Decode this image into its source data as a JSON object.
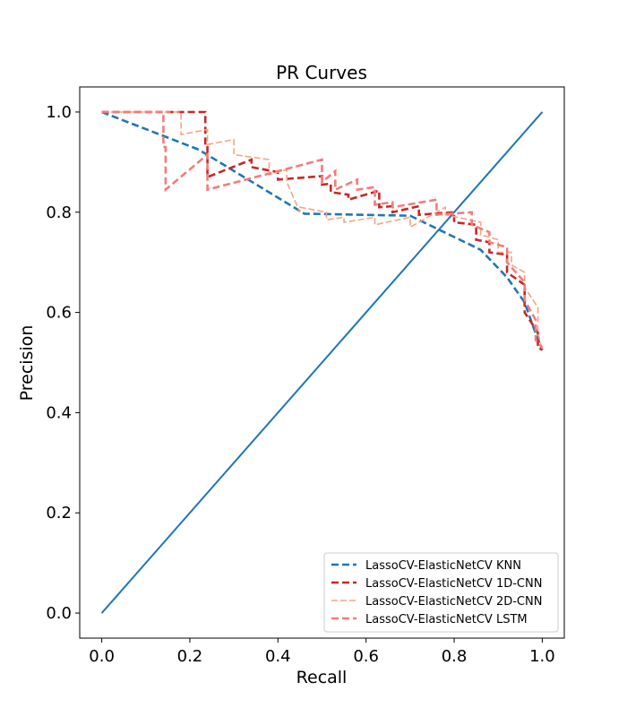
{
  "chart_data": {
    "type": "line",
    "title": "PR Curves",
    "xlabel": "Recall",
    "ylabel": "Precision",
    "xlim": [
      -0.05,
      1.05
    ],
    "ylim": [
      -0.05,
      1.05
    ],
    "xticks": [
      0.0,
      0.2,
      0.4,
      0.6,
      0.8,
      1.0
    ],
    "yticks": [
      0.0,
      0.2,
      0.4,
      0.6,
      0.8,
      1.0
    ],
    "xtick_labels": [
      "0.0",
      "0.2",
      "0.4",
      "0.6",
      "0.8",
      "1.0"
    ],
    "ytick_labels": [
      "0.0",
      "0.2",
      "0.4",
      "0.6",
      "0.8",
      "1.0"
    ],
    "grid": false,
    "legend_position": "lower-right",
    "diagonal": {
      "x": [
        0,
        1
      ],
      "y": [
        0,
        1
      ],
      "color": "#1f77b4"
    },
    "series": [
      {
        "name": "LassoCV-ElasticNetCV KNN",
        "color": "#1f77b4",
        "dash": "dashed",
        "x": [
          0.0,
          0.22,
          0.46,
          0.7,
          0.86,
          0.92,
          0.96,
          0.98,
          1.0
        ],
        "y": [
          1.0,
          0.925,
          0.797,
          0.793,
          0.725,
          0.67,
          0.62,
          0.57,
          0.525
        ]
      },
      {
        "name": "LassoCV-ElasticNetCV 1D-CNN",
        "color": "#c62828",
        "dash": "dashed",
        "x": [
          0.0,
          0.235,
          0.235,
          0.24,
          0.24,
          0.34,
          0.34,
          0.4,
          0.4,
          0.5,
          0.5,
          0.52,
          0.52,
          0.56,
          0.56,
          0.63,
          0.63,
          0.66,
          0.66,
          0.72,
          0.72,
          0.8,
          0.8,
          0.85,
          0.85,
          0.88,
          0.88,
          0.92,
          0.92,
          0.96,
          0.96,
          0.99,
          0.99,
          1.0
        ],
        "y": [
          1.0,
          1.0,
          0.93,
          0.93,
          0.87,
          0.905,
          0.89,
          0.88,
          0.865,
          0.872,
          0.855,
          0.857,
          0.84,
          0.835,
          0.825,
          0.843,
          0.81,
          0.812,
          0.8,
          0.812,
          0.795,
          0.8,
          0.78,
          0.775,
          0.745,
          0.74,
          0.72,
          0.715,
          0.68,
          0.655,
          0.6,
          0.56,
          0.53,
          0.525
        ]
      },
      {
        "name": "LassoCV-ElasticNetCV 2D-CNN",
        "color": "#f4a582",
        "dash": "dashed",
        "x": [
          0.0,
          0.18,
          0.18,
          0.24,
          0.24,
          0.3,
          0.3,
          0.38,
          0.38,
          0.42,
          0.42,
          0.45,
          0.45,
          0.51,
          0.51,
          0.55,
          0.55,
          0.62,
          0.62,
          0.7,
          0.7,
          0.78,
          0.78,
          0.86,
          0.86,
          0.9,
          0.9,
          0.93,
          0.93,
          0.96,
          0.96,
          0.99,
          0.99,
          1.0
        ],
        "y": [
          1.0,
          1.0,
          0.955,
          0.965,
          0.935,
          0.945,
          0.915,
          0.905,
          0.875,
          0.885,
          0.86,
          0.8,
          0.81,
          0.8,
          0.785,
          0.79,
          0.78,
          0.79,
          0.775,
          0.79,
          0.77,
          0.81,
          0.795,
          0.78,
          0.755,
          0.745,
          0.72,
          0.72,
          0.695,
          0.68,
          0.65,
          0.61,
          0.56,
          0.525
        ]
      },
      {
        "name": "LassoCV-ElasticNetCV LSTM",
        "color": "#f47c7c",
        "dash": "dashed",
        "x": [
          0.0,
          0.14,
          0.14,
          0.145,
          0.145,
          0.24,
          0.24,
          0.5,
          0.5,
          0.53,
          0.53,
          0.58,
          0.58,
          0.62,
          0.62,
          0.66,
          0.66,
          0.76,
          0.76,
          0.84,
          0.84,
          0.88,
          0.88,
          0.92,
          0.92,
          0.96,
          0.96,
          0.985,
          0.985,
          1.0
        ],
        "y": [
          1.0,
          1.0,
          0.93,
          0.93,
          0.845,
          0.915,
          0.845,
          0.905,
          0.86,
          0.882,
          0.845,
          0.865,
          0.845,
          0.85,
          0.815,
          0.82,
          0.81,
          0.825,
          0.795,
          0.8,
          0.775,
          0.76,
          0.74,
          0.73,
          0.7,
          0.66,
          0.625,
          0.585,
          0.545,
          0.53
        ]
      }
    ]
  }
}
